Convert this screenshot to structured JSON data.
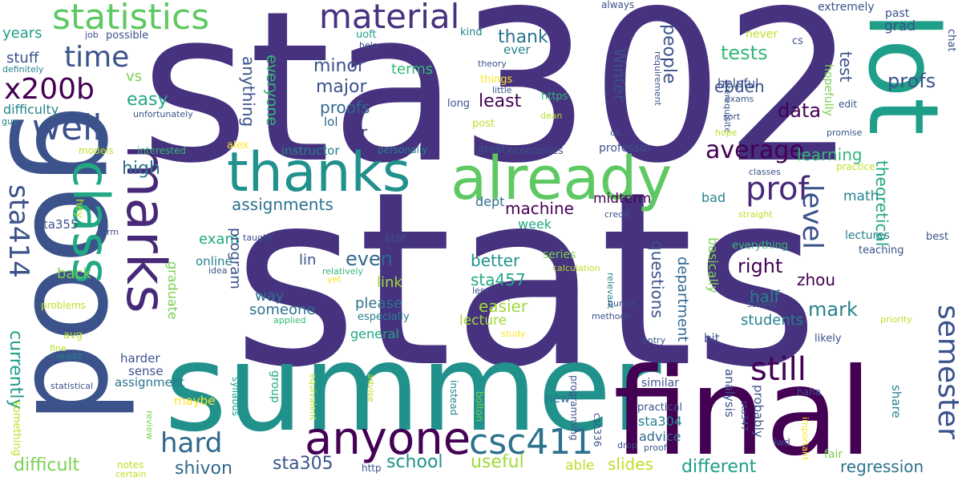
{
  "words": [
    {
      "text": "stats",
      "color": "#46327e"
    },
    {
      "text": "sta302",
      "color": "#46327e"
    },
    {
      "text": "summer",
      "color": "#21918c"
    },
    {
      "text": "good",
      "color": "#3b528b"
    },
    {
      "text": "final",
      "color": "#440154"
    },
    {
      "text": "lot",
      "color": "#1f9e89"
    },
    {
      "text": "already",
      "color": "#5ec962"
    },
    {
      "text": "thanks",
      "color": "#21918c"
    },
    {
      "text": "marks",
      "color": "#482878"
    },
    {
      "text": "class",
      "color": "#22a884"
    },
    {
      "text": "statistics",
      "color": "#5ec962"
    },
    {
      "text": "material",
      "color": "#46327e"
    },
    {
      "text": "anyone",
      "color": "#440154"
    },
    {
      "text": "csc411",
      "color": "#2c728e"
    },
    {
      "text": "well",
      "color": "#3b528b"
    },
    {
      "text": "time",
      "color": "#3b528b"
    },
    {
      "text": "x200b",
      "color": "#440154"
    },
    {
      "text": "sta414",
      "color": "#3b528b"
    },
    {
      "text": "hard",
      "color": "#31688e"
    },
    {
      "text": "still",
      "color": "#440154"
    },
    {
      "text": "prof",
      "color": "#482878"
    },
    {
      "text": "average",
      "color": "#440154"
    },
    {
      "text": "level",
      "color": "#3b528b"
    },
    {
      "text": "semester",
      "color": "#3b528b"
    },
    {
      "text": "shivon",
      "color": "#31688e"
    },
    {
      "text": "sta305",
      "color": "#3b528b"
    },
    {
      "text": "school",
      "color": "#21918c"
    },
    {
      "text": "useful",
      "color": "#a0da39"
    },
    {
      "text": "different",
      "color": "#1f9e89"
    },
    {
      "text": "regression",
      "color": "#2c728e"
    },
    {
      "text": "difficult",
      "color": "#7ad151"
    },
    {
      "text": "currently",
      "color": "#1f9e89"
    },
    {
      "text": "years",
      "color": "#1f9e89"
    },
    {
      "text": "stuff",
      "color": "#3b528b"
    },
    {
      "text": "difficulty",
      "color": "#26828e"
    },
    {
      "text": "definitely",
      "color": "#26828e"
    },
    {
      "text": "guy",
      "color": "#26828e"
    },
    {
      "text": "job",
      "color": "#3b528b"
    },
    {
      "text": "possible",
      "color": "#3b528b"
    },
    {
      "text": "unfortunately",
      "color": "#3b528b"
    },
    {
      "text": "models",
      "color": "#bddf26"
    },
    {
      "text": "interested",
      "color": "#35b779"
    },
    {
      "text": "alex",
      "color": "#fde725"
    },
    {
      "text": "instructor",
      "color": "#26828e"
    },
    {
      "text": "personally",
      "color": "#26828e"
    },
    {
      "text": "vs",
      "color": "#7ad151"
    },
    {
      "text": "easy",
      "color": "#22a884"
    },
    {
      "text": "high",
      "color": "#2c728e"
    },
    {
      "text": "hey",
      "color": "#bddf26"
    },
    {
      "text": "sta355",
      "color": "#3b528b"
    },
    {
      "text": "term",
      "color": "#3b528b"
    },
    {
      "text": "back",
      "color": "#7ad151"
    },
    {
      "text": "problems",
      "color": "#bddf26"
    },
    {
      "text": "avg",
      "color": "#bddf26"
    },
    {
      "text": "fine",
      "color": "#bddf26"
    },
    {
      "text": "reddit",
      "color": "#26828e"
    },
    {
      "text": "statistical",
      "color": "#3b528b"
    },
    {
      "text": "something",
      "color": "#bddf26"
    },
    {
      "text": "syllabus",
      "color": "#1f9e89"
    },
    {
      "text": "review",
      "color": "#7ad151"
    },
    {
      "text": "notes",
      "color": "#bddf26"
    },
    {
      "text": "certain",
      "color": "#bddf26"
    },
    {
      "text": "assignment",
      "color": "#2c728e"
    },
    {
      "text": "harder",
      "color": "#3b528b"
    },
    {
      "text": "sense",
      "color": "#3b528b"
    },
    {
      "text": "maybe",
      "color": "#fde725"
    },
    {
      "text": "exam",
      "color": "#22a884"
    },
    {
      "text": "online",
      "color": "#26828e"
    },
    {
      "text": "graduate",
      "color": "#7ad151"
    },
    {
      "text": "program",
      "color": "#3b528b"
    },
    {
      "text": "assignments",
      "color": "#2c728e"
    },
    {
      "text": "lin",
      "color": "#3b528b"
    },
    {
      "text": "even",
      "color": "#31688e"
    },
    {
      "text": "anything",
      "color": "#3b528b"
    },
    {
      "text": "everyone",
      "color": "#35b779"
    },
    {
      "text": "minor",
      "color": "#3b528b"
    },
    {
      "text": "major",
      "color": "#3b528b"
    },
    {
      "text": "proofs",
      "color": "#31688e"
    },
    {
      "text": "lol",
      "color": "#31688e"
    },
    {
      "text": "terms",
      "color": "#35b779"
    },
    {
      "text": "uoft",
      "color": "#1f9e89"
    },
    {
      "text": "help",
      "color": "#3b528b"
    },
    {
      "text": "r",
      "color": "#46327e"
    },
    {
      "text": "thank",
      "color": "#2c728e"
    },
    {
      "text": "least",
      "color": "#440154"
    },
    {
      "text": "machine",
      "color": "#440154"
    },
    {
      "text": "way",
      "color": "#2c728e"
    },
    {
      "text": "someone",
      "color": "#2c728e"
    },
    {
      "text": "please",
      "color": "#2c728e"
    },
    {
      "text": "link",
      "color": "#a0da39"
    },
    {
      "text": "sta457",
      "color": "#22a884"
    },
    {
      "text": "easier",
      "color": "#a0da39"
    },
    {
      "text": "lecture",
      "color": "#a0da39"
    },
    {
      "text": "better",
      "color": "#21918c"
    },
    {
      "text": "general",
      "color": "#22a884"
    },
    {
      "text": "especially",
      "color": "#26828e"
    },
    {
      "text": "relatively",
      "color": "#35b779"
    },
    {
      "text": "yet",
      "color": "#fde725"
    },
    {
      "text": "less",
      "color": "#3b528b"
    },
    {
      "text": "study",
      "color": "#fde725"
    },
    {
      "text": "applied",
      "color": "#35b779"
    },
    {
      "text": "idea",
      "color": "#3b528b"
    },
    {
      "text": "taught",
      "color": "#3b528b"
    },
    {
      "text": "stat",
      "color": "#3b528b"
    },
    {
      "text": "group",
      "color": "#22a884"
    },
    {
      "text": "equivalent",
      "color": "#bddf26"
    },
    {
      "text": "advise",
      "color": "#bddf26"
    },
    {
      "text": "instead",
      "color": "#26828e"
    },
    {
      "text": "bolton",
      "color": "#7ad151"
    },
    {
      "text": "http",
      "color": "#3b528b"
    },
    {
      "text": "new",
      "color": "#2c728e"
    },
    {
      "text": "programming",
      "color": "#3b528b"
    },
    {
      "text": "csc336",
      "color": "#3b528b"
    },
    {
      "text": "drop",
      "color": "#3b528b"
    },
    {
      "text": "able",
      "color": "#bddf26"
    },
    {
      "text": "slides",
      "color": "#bddf26"
    },
    {
      "text": "series",
      "color": "#7ad151"
    },
    {
      "text": "kind",
      "color": "#26828e"
    },
    {
      "text": "ever",
      "color": "#26828e"
    },
    {
      "text": "theory",
      "color": "#3b528b"
    },
    {
      "text": "things",
      "color": "#fde725"
    },
    {
      "text": "little",
      "color": "#3b528b"
    },
    {
      "text": "https",
      "color": "#35b779"
    },
    {
      "text": "long",
      "color": "#3b528b"
    },
    {
      "text": "post",
      "color": "#bddf26"
    },
    {
      "text": "dean",
      "color": "#bddf26"
    },
    {
      "text": "great",
      "color": "#3b528b"
    },
    {
      "text": "economics",
      "color": "#3b528b"
    },
    {
      "text": "professor",
      "color": "#3b528b"
    },
    {
      "text": "week",
      "color": "#22a884"
    },
    {
      "text": "dept",
      "color": "#2c728e"
    },
    {
      "text": "midterm",
      "color": "#440154"
    },
    {
      "text": "Winter",
      "color": "#3b528b"
    },
    {
      "text": "people",
      "color": "#3b528b"
    },
    {
      "text": "requirement",
      "color": "#3b528b"
    },
    {
      "text": "prerequisite",
      "color": "#3b528b"
    },
    {
      "text": "ok",
      "color": "#3b528b"
    },
    {
      "text": "credit",
      "color": "#3b528b"
    },
    {
      "text": "calculation",
      "color": "#bddf26"
    },
    {
      "text": "relevant",
      "color": "#26828e"
    },
    {
      "text": "bunch",
      "color": "#3b528b"
    },
    {
      "text": "methods",
      "color": "#3b528b"
    },
    {
      "text": "proof",
      "color": "#3b528b"
    },
    {
      "text": "entry",
      "color": "#3b528b"
    },
    {
      "text": "similar",
      "color": "#3b528b"
    },
    {
      "text": "practical",
      "color": "#3b528b"
    },
    {
      "text": "sta304",
      "color": "#26828e"
    },
    {
      "text": "advice",
      "color": "#31688e"
    },
    {
      "text": "questions",
      "color": "#3b528b"
    },
    {
      "text": "department",
      "color": "#31688e"
    },
    {
      "text": "basically",
      "color": "#7ad151"
    },
    {
      "text": "bit",
      "color": "#3b528b"
    },
    {
      "text": "analysis",
      "color": "#3b528b"
    },
    {
      "text": "probably",
      "color": "#3b528b"
    },
    {
      "text": "ebden",
      "color": "#3b528b"
    },
    {
      "text": "tests",
      "color": "#35b779"
    },
    {
      "text": "helpful",
      "color": "#3b528b"
    },
    {
      "text": "exams",
      "color": "#3b528b"
    },
    {
      "text": "sort",
      "color": "#3b528b"
    },
    {
      "text": "hope",
      "color": "#bddf26"
    },
    {
      "text": "data",
      "color": "#440154"
    },
    {
      "text": "learning",
      "color": "#35b779"
    },
    {
      "text": "bad",
      "color": "#26828e"
    },
    {
      "text": "classes",
      "color": "#3b528b"
    },
    {
      "text": "straight",
      "color": "#bddf26"
    },
    {
      "text": "right",
      "color": "#440154"
    },
    {
      "text": "half",
      "color": "#26828e"
    },
    {
      "text": "mark",
      "color": "#26828e"
    },
    {
      "text": "students",
      "color": "#26828e"
    },
    {
      "text": "everything",
      "color": "#35b779"
    },
    {
      "text": "sta442",
      "color": "#3b528b"
    },
    {
      "text": "likely",
      "color": "#3b528b"
    },
    {
      "text": "haha",
      "color": "#3b528b"
    },
    {
      "text": "sta347",
      "color": "#3b528b"
    },
    {
      "text": "important",
      "color": "#fde725"
    },
    {
      "text": "lwd",
      "color": "#3b528b"
    },
    {
      "text": "fair",
      "color": "#7ad151"
    },
    {
      "text": "zhou",
      "color": "#440154"
    },
    {
      "text": "share",
      "color": "#26828e"
    },
    {
      "text": "test",
      "color": "#3b528b"
    },
    {
      "text": "hopefully",
      "color": "#7ad151"
    },
    {
      "text": "theoretical",
      "color": "#22a884"
    },
    {
      "text": "math",
      "color": "#26828e"
    },
    {
      "text": "lectures",
      "color": "#26828e"
    },
    {
      "text": "teaching",
      "color": "#3b528b"
    },
    {
      "text": "best",
      "color": "#3b528b"
    },
    {
      "text": "priority",
      "color": "#bddf26"
    },
    {
      "text": "practice",
      "color": "#bddf26"
    },
    {
      "text": "edit",
      "color": "#3b528b"
    },
    {
      "text": "promise",
      "color": "#3b528b"
    },
    {
      "text": "profs",
      "color": "#3b528b"
    },
    {
      "text": "grad",
      "color": "#3b528b"
    },
    {
      "text": "past",
      "color": "#3b528b"
    },
    {
      "text": "extremely",
      "color": "#3b528b"
    },
    {
      "text": "chat",
      "color": "#3b528b"
    },
    {
      "text": "cs",
      "color": "#3b528b"
    },
    {
      "text": "never",
      "color": "#bddf26"
    },
    {
      "text": "always",
      "color": "#3b528b"
    }
  ]
}
